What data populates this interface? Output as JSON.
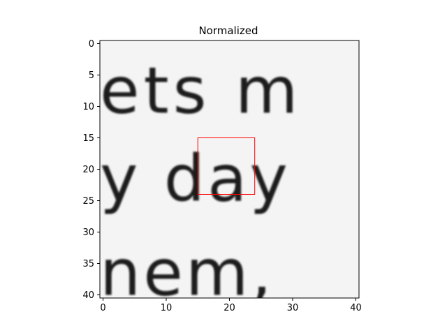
{
  "chart_data": {
    "type": "heatmap",
    "title": "Normalized",
    "xlabel": "",
    "ylabel": "",
    "xlim": [
      -0.5,
      40.5
    ],
    "ylim": [
      40.5,
      -0.5
    ],
    "x_ticks": [
      0,
      10,
      20,
      30,
      40
    ],
    "y_ticks": [
      0,
      5,
      10,
      15,
      20,
      25,
      30,
      35,
      40
    ],
    "colormap": "gray",
    "description_text_lines": [
      "ets m",
      "y day",
      "nem,"
    ],
    "highlight_box": {
      "x0": 15,
      "y0": 15,
      "x1": 24,
      "y1": 24,
      "color": "#ff0000"
    },
    "grid": false,
    "colors": {
      "background": "#ffffff",
      "box": "#ff0000",
      "axis": "#000000"
    }
  }
}
